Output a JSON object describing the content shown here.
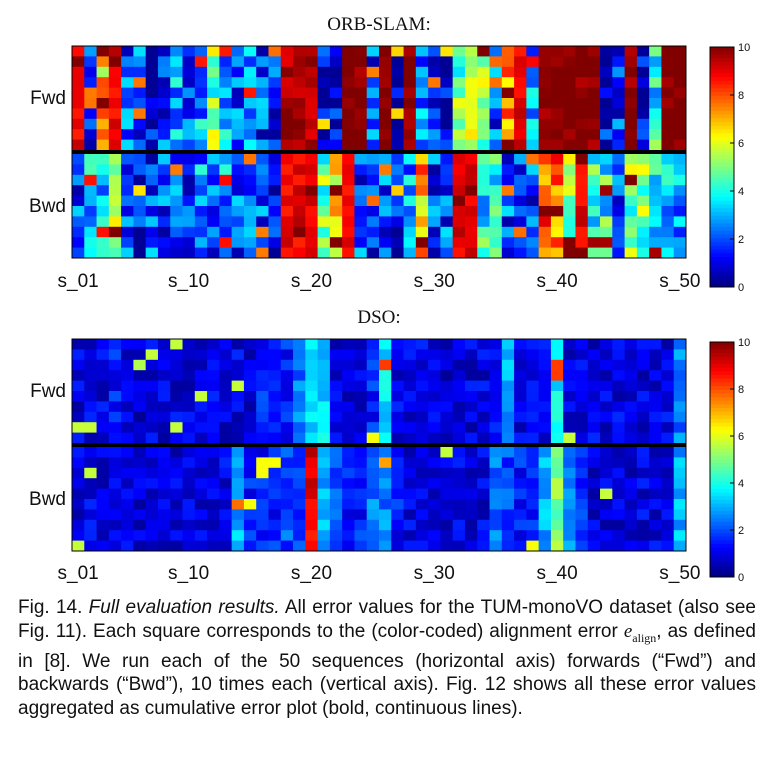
{
  "chart_data": [
    {
      "type": "heatmap",
      "title": "ORB-SLAM:",
      "rows": [
        "Fwd",
        "Bwd"
      ],
      "runs_per_row": 10,
      "x_tick_labels": [
        "s_01",
        "s_10",
        "s_20",
        "s_30",
        "s_40",
        "s_50"
      ],
      "x_tick_positions": [
        1,
        10,
        20,
        30,
        40,
        50
      ],
      "n_sequences": 50,
      "colorbar_ticks": [
        0,
        2,
        4,
        6,
        8,
        10
      ],
      "vmin": 0,
      "vmax": 10,
      "colormap": "jet",
      "fwd_means": [
        9,
        2,
        7,
        9,
        2,
        2,
        1,
        2,
        3,
        2,
        3,
        5,
        3,
        2,
        3,
        2,
        2,
        9.5,
        9.5,
        9.5,
        1,
        1,
        10,
        10,
        2,
        10,
        1,
        10,
        3,
        2,
        1,
        5,
        6,
        5,
        2,
        7,
        9,
        3,
        10,
        10,
        10,
        10,
        10,
        1,
        2,
        10,
        1,
        4,
        10,
        10
      ],
      "bwd_means": [
        2,
        3,
        3,
        6,
        2,
        1,
        2,
        2,
        2,
        2,
        3,
        2,
        3,
        2,
        2,
        2,
        1,
        9,
        9,
        9,
        5,
        7,
        9,
        2,
        2,
        2,
        1,
        3,
        7,
        2,
        2,
        9,
        9,
        4,
        4,
        2,
        2,
        2,
        8,
        8,
        5,
        9,
        4,
        4,
        2,
        5,
        5,
        4,
        3,
        3
      ]
    },
    {
      "type": "heatmap",
      "title": "DSO:",
      "rows": [
        "Fwd",
        "Bwd"
      ],
      "runs_per_row": 10,
      "x_tick_labels": [
        "s_01",
        "s_10",
        "s_20",
        "s_30",
        "s_40",
        "s_50"
      ],
      "x_tick_positions": [
        1,
        10,
        20,
        30,
        40,
        50
      ],
      "n_sequences": 50,
      "colorbar_ticks": [
        0,
        2,
        4,
        6,
        8,
        10
      ],
      "vmin": 0,
      "vmax": 10,
      "colormap": "jet",
      "fwd_means": [
        1,
        1,
        1,
        1.5,
        1,
        0.8,
        1,
        1,
        1,
        1,
        1,
        1,
        1,
        1,
        1,
        1.5,
        1.5,
        1.5,
        2.5,
        3.5,
        3.5,
        1,
        1,
        1,
        1.5,
        3.5,
        1,
        1,
        1,
        1,
        0.8,
        1,
        1,
        1,
        1.2,
        3,
        1,
        1,
        1,
        3.5,
        1,
        1,
        1,
        1,
        1,
        1,
        1,
        1,
        1,
        2.5
      ],
      "bwd_means": [
        1,
        1,
        1,
        1,
        1,
        1,
        1,
        1,
        1,
        1,
        1,
        1,
        1,
        3,
        1.5,
        1.5,
        1.5,
        2,
        2,
        9,
        3,
        2,
        1.5,
        1.5,
        2.5,
        2.5,
        1.5,
        1,
        1,
        1,
        1,
        1,
        1,
        1,
        2.5,
        2,
        1.5,
        1.5,
        3,
        5,
        2.5,
        1.5,
        1,
        1,
        1,
        1,
        1,
        1,
        1,
        3
      ]
    }
  ],
  "caption": {
    "fig_label": "Fig. 14.",
    "italic_title": "Full evaluation results.",
    "text_1": "All error values for the TUM-monoVO dataset (also see Fig. 11). Each square corresponds to the (color-coded) alignment error",
    "math_symbol": "e",
    "math_subscript": "align",
    "text_2": ", as defined in [8]. We run each of the 50 sequences (horizontal axis) forwards (“Fwd”) and backwards (“Bwd”), 10 times each (vertical axis). Fig. 12 shows all these error values aggregated as cumulative error plot (bold, continuous lines)."
  }
}
